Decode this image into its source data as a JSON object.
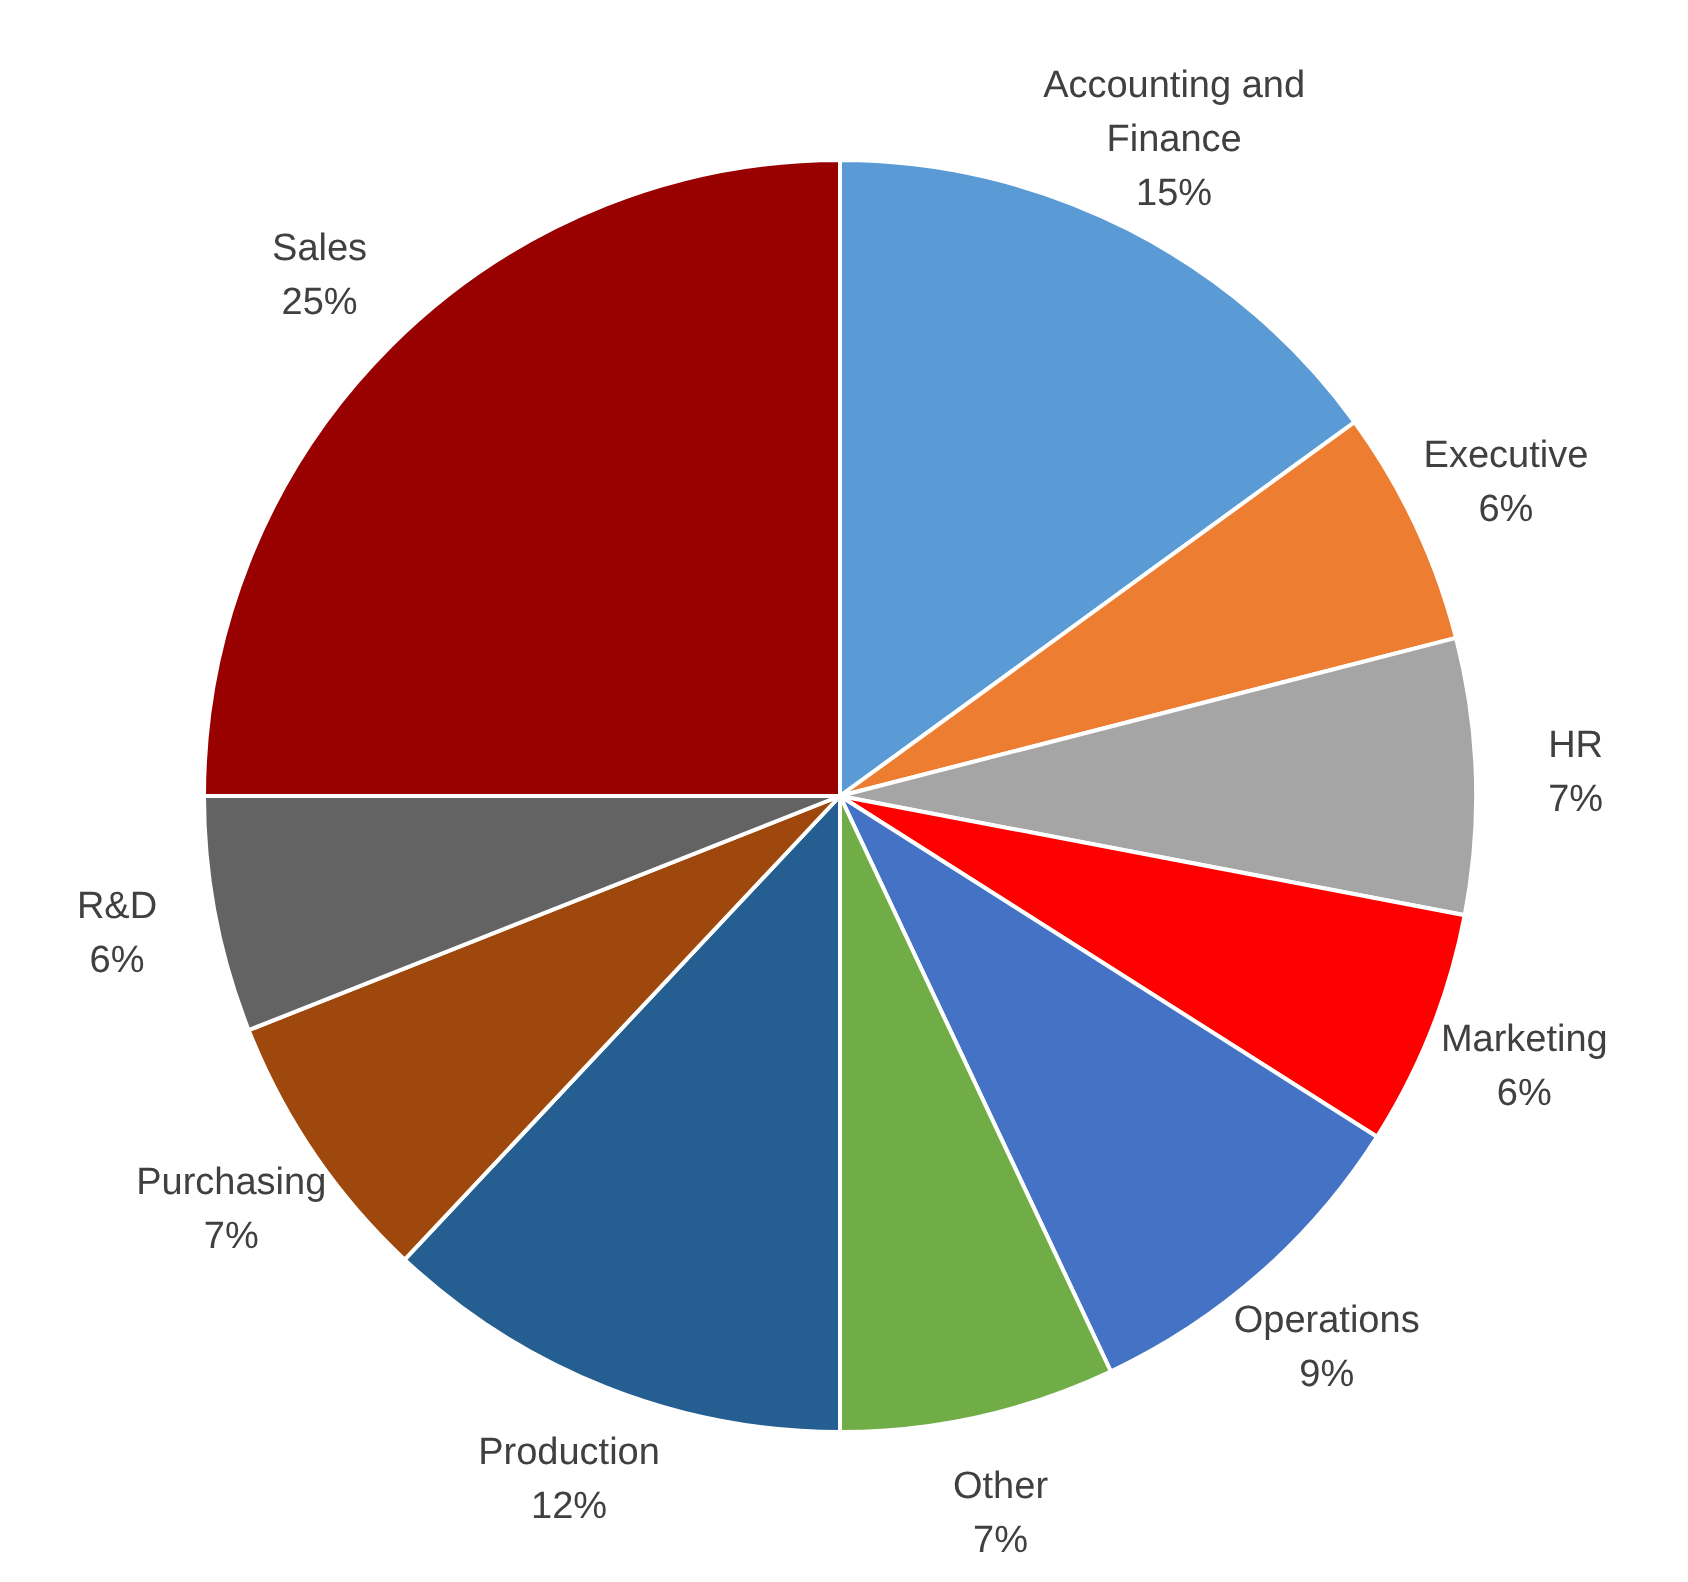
{
  "chart_data": {
    "type": "pie",
    "categories": [
      "Accounting and Finance",
      "Executive",
      "HR",
      "Marketing",
      "Operations",
      "Other",
      "Production",
      "Purchasing",
      "R&D",
      "Sales"
    ],
    "values": [
      15,
      6,
      7,
      6,
      9,
      7,
      12,
      7,
      6,
      25
    ],
    "colors": [
      "#5b9bd5",
      "#ed7d31",
      "#a5a5a5",
      "#ff0000",
      "#4472c4",
      "#70ad47",
      "#255e91",
      "#9e480e",
      "#636363",
      "#990000"
    ],
    "value_labels": [
      "15%",
      "6%",
      "7%",
      "6%",
      "9%",
      "7%",
      "12%",
      "7%",
      "6%",
      "25%"
    ],
    "legend": false
  }
}
